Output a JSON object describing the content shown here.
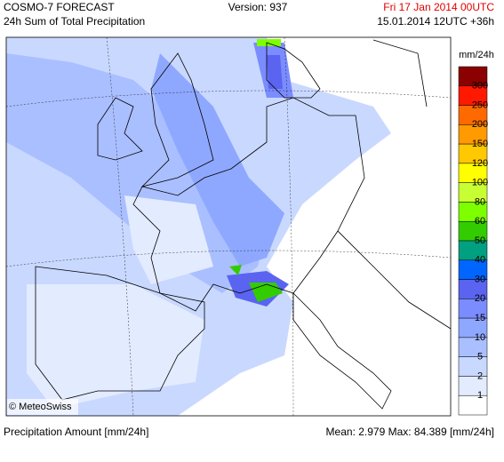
{
  "header": {
    "title": "COSMO-7 FORECAST",
    "subtitle": "24h Sum of Total Precipitation",
    "version": "Version: 937",
    "valid_time": "Fri 17 Jan 2014 00UTC",
    "run_time": "15.01.2014 12UTC +36h"
  },
  "map": {
    "credit": "© MeteoSwiss"
  },
  "legend": {
    "unit": "mm/24h",
    "labels": [
      "300",
      "250",
      "200",
      "150",
      "120",
      "100",
      "80",
      "60",
      "50",
      "40",
      "30",
      "20",
      "15",
      "10",
      "5",
      "2",
      "1"
    ],
    "colors": [
      "#8b0000",
      "#ff1900",
      "#ff6a00",
      "#ff9a00",
      "#ffc800",
      "#ffff00",
      "#c8ff32",
      "#7dff00",
      "#33cc00",
      "#00a080",
      "#0066ff",
      "#5a64f0",
      "#7b8cff",
      "#8fa8ff",
      "#aabfff",
      "#c9d8ff",
      "#e3ebff",
      "#ffffff"
    ]
  },
  "footer": {
    "left": "Precipitation Amount [mm/24h]",
    "right": "Mean:  2.979 Max:  84.389 [mm/24h]"
  }
}
